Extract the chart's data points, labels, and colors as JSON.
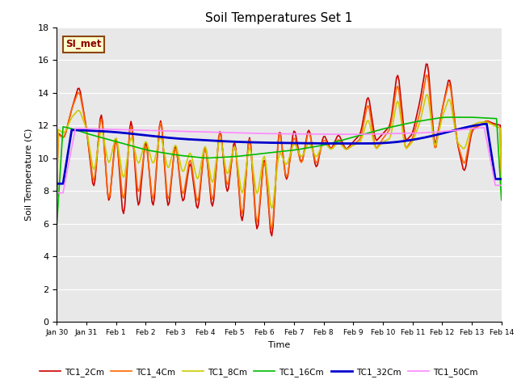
{
  "title": "Soil Temperatures Set 1",
  "xlabel": "Time",
  "ylabel": "Soil Temperature (C)",
  "ylim": [
    0,
    18
  ],
  "yticks": [
    0,
    2,
    4,
    6,
    8,
    10,
    12,
    14,
    16,
    18
  ],
  "fig_bg_color": "#ffffff",
  "plot_bg_color": "#e8e8e8",
  "annotation_text": "SI_met",
  "annotation_bg": "#ffffcc",
  "annotation_border": "#8b4513",
  "annotation_text_color": "#8b0000",
  "series": {
    "TC1_2Cm": {
      "color": "#cc0000",
      "lw": 1.2
    },
    "TC1_4Cm": {
      "color": "#ff6600",
      "lw": 1.2
    },
    "TC1_8Cm": {
      "color": "#cccc00",
      "lw": 1.2
    },
    "TC1_16Cm": {
      "color": "#00bb00",
      "lw": 1.2
    },
    "TC1_32Cm": {
      "color": "#0000cc",
      "lw": 2.0
    },
    "TC1_50Cm": {
      "color": "#ff88ff",
      "lw": 1.2
    }
  },
  "xtick_labels": [
    "Jan 30",
    "Jan 31",
    "Feb 1",
    "Feb 2",
    "Feb 3",
    "Feb 4",
    "Feb 5",
    "Feb 6",
    "Feb 7",
    "Feb 8",
    "Feb 9",
    "Feb 10",
    "Feb 11",
    "Feb 12",
    "Feb 13",
    "Feb 14"
  ],
  "xtick_positions": [
    0,
    24,
    48,
    72,
    96,
    120,
    144,
    168,
    192,
    216,
    240,
    264,
    288,
    312,
    336,
    360
  ]
}
